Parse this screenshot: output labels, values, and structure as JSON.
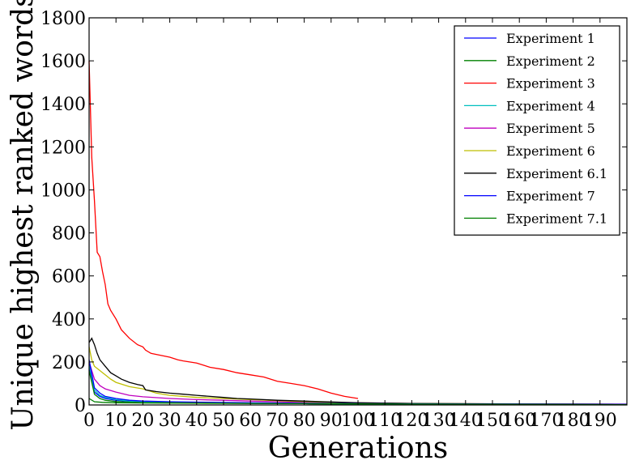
{
  "chart_data": {
    "type": "line",
    "title": "",
    "xlabel": "Generations",
    "ylabel": "Unique highest ranked words",
    "xlim": [
      0,
      200
    ],
    "ylim": [
      0,
      1800
    ],
    "xticks": [
      0,
      10,
      20,
      30,
      40,
      50,
      60,
      70,
      80,
      90,
      100,
      110,
      120,
      130,
      140,
      150,
      160,
      170,
      180,
      190
    ],
    "yticks": [
      0,
      200,
      400,
      600,
      800,
      1000,
      1200,
      1400,
      1600,
      1800
    ],
    "grid": false,
    "legend_position": "top-right",
    "series": [
      {
        "name": "Experiment 1",
        "color": "#0000ff",
        "points": [
          [
            0,
            170
          ],
          [
            2,
            60
          ],
          [
            4,
            40
          ],
          [
            6,
            30
          ],
          [
            10,
            22
          ],
          [
            15,
            17
          ],
          [
            20,
            14
          ],
          [
            30,
            12
          ],
          [
            40,
            10
          ],
          [
            60,
            8
          ],
          [
            80,
            6
          ],
          [
            100,
            5
          ],
          [
            130,
            4
          ],
          [
            160,
            3
          ],
          [
            200,
            3
          ]
        ]
      },
      {
        "name": "Experiment 2",
        "color": "#008000",
        "points": [
          [
            0,
            30
          ],
          [
            2,
            15
          ],
          [
            5,
            12
          ],
          [
            10,
            10
          ],
          [
            20,
            9
          ],
          [
            40,
            8
          ],
          [
            60,
            7
          ],
          [
            80,
            6
          ],
          [
            100,
            5
          ],
          [
            150,
            4
          ],
          [
            200,
            3
          ]
        ]
      },
      {
        "name": "Experiment 3",
        "color": "#ff0000",
        "points": [
          [
            0,
            1600
          ],
          [
            1,
            1150
          ],
          [
            2,
            950
          ],
          [
            3,
            710
          ],
          [
            4,
            690
          ],
          [
            5,
            620
          ],
          [
            6,
            560
          ],
          [
            7,
            470
          ],
          [
            8,
            440
          ],
          [
            10,
            400
          ],
          [
            12,
            350
          ],
          [
            15,
            310
          ],
          [
            18,
            280
          ],
          [
            20,
            270
          ],
          [
            21,
            255
          ],
          [
            23,
            240
          ],
          [
            25,
            235
          ],
          [
            30,
            222
          ],
          [
            33,
            210
          ],
          [
            35,
            205
          ],
          [
            40,
            195
          ],
          [
            45,
            175
          ],
          [
            50,
            165
          ],
          [
            55,
            150
          ],
          [
            60,
            140
          ],
          [
            65,
            130
          ],
          [
            70,
            110
          ],
          [
            75,
            100
          ],
          [
            80,
            90
          ],
          [
            85,
            75
          ],
          [
            90,
            55
          ],
          [
            95,
            40
          ],
          [
            100,
            30
          ]
        ]
      },
      {
        "name": "Experiment 4",
        "color": "#00bfbf",
        "points": [
          [
            0,
            190
          ],
          [
            2,
            70
          ],
          [
            4,
            45
          ],
          [
            6,
            35
          ],
          [
            10,
            25
          ],
          [
            15,
            18
          ],
          [
            20,
            15
          ],
          [
            30,
            12
          ],
          [
            50,
            9
          ],
          [
            70,
            7
          ],
          [
            100,
            5
          ],
          [
            150,
            3
          ],
          [
            200,
            2
          ]
        ]
      },
      {
        "name": "Experiment 5",
        "color": "#bf00bf",
        "points": [
          [
            0,
            200
          ],
          [
            2,
            120
          ],
          [
            4,
            90
          ],
          [
            6,
            75
          ],
          [
            10,
            60
          ],
          [
            15,
            45
          ],
          [
            20,
            38
          ],
          [
            30,
            30
          ],
          [
            40,
            25
          ],
          [
            50,
            22
          ],
          [
            60,
            18
          ],
          [
            70,
            15
          ],
          [
            80,
            12
          ],
          [
            100,
            9
          ],
          [
            130,
            6
          ],
          [
            160,
            5
          ],
          [
            200,
            4
          ]
        ]
      },
      {
        "name": "Experiment 6",
        "color": "#bfbf00",
        "points": [
          [
            0,
            270
          ],
          [
            1,
            210
          ],
          [
            2,
            180
          ],
          [
            4,
            160
          ],
          [
            6,
            140
          ],
          [
            8,
            120
          ],
          [
            10,
            105
          ],
          [
            15,
            85
          ],
          [
            20,
            75
          ],
          [
            25,
            55
          ],
          [
            30,
            45
          ],
          [
            40,
            35
          ],
          [
            50,
            30
          ],
          [
            60,
            25
          ],
          [
            70,
            20
          ],
          [
            80,
            15
          ],
          [
            90,
            12
          ],
          [
            100,
            10
          ],
          [
            120,
            7
          ],
          [
            150,
            5
          ],
          [
            200,
            3
          ]
        ]
      },
      {
        "name": "Experiment 6.1",
        "color": "#000000",
        "points": [
          [
            0,
            290
          ],
          [
            1,
            310
          ],
          [
            2,
            280
          ],
          [
            3,
            240
          ],
          [
            4,
            210
          ],
          [
            6,
            180
          ],
          [
            8,
            150
          ],
          [
            10,
            135
          ],
          [
            12,
            120
          ],
          [
            15,
            105
          ],
          [
            18,
            95
          ],
          [
            20,
            90
          ],
          [
            21,
            70
          ],
          [
            25,
            62
          ],
          [
            30,
            55
          ],
          [
            35,
            50
          ],
          [
            40,
            45
          ],
          [
            45,
            40
          ],
          [
            50,
            35
          ],
          [
            55,
            30
          ],
          [
            60,
            28
          ],
          [
            70,
            22
          ],
          [
            80,
            18
          ],
          [
            90,
            14
          ],
          [
            100,
            10
          ],
          [
            120,
            7
          ],
          [
            150,
            5
          ],
          [
            200,
            3
          ]
        ]
      },
      {
        "name": "Experiment 7",
        "color": "#0000ff",
        "points": [
          [
            0,
            210
          ],
          [
            2,
            80
          ],
          [
            4,
            55
          ],
          [
            6,
            40
          ],
          [
            10,
            30
          ],
          [
            15,
            22
          ],
          [
            20,
            18
          ],
          [
            30,
            15
          ],
          [
            40,
            13
          ],
          [
            60,
            10
          ],
          [
            80,
            8
          ],
          [
            100,
            6
          ],
          [
            150,
            4
          ],
          [
            200,
            3
          ]
        ]
      },
      {
        "name": "Experiment 7.1",
        "color": "#008000",
        "points": [
          [
            0,
            160
          ],
          [
            2,
            50
          ],
          [
            4,
            30
          ],
          [
            6,
            22
          ],
          [
            10,
            16
          ],
          [
            15,
            13
          ],
          [
            20,
            11
          ],
          [
            40,
            9
          ],
          [
            60,
            7
          ],
          [
            80,
            6
          ],
          [
            100,
            5
          ],
          [
            150,
            3
          ],
          [
            200,
            2
          ]
        ]
      }
    ]
  }
}
